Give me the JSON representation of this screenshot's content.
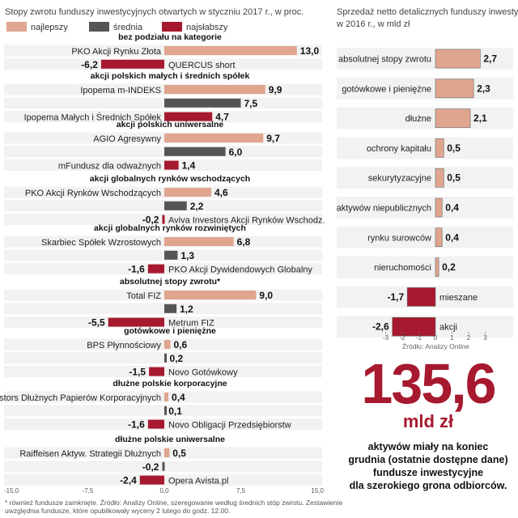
{
  "left_chart": {
    "title": "Stopy zwrotu funduszy inwestycyjnych otwartych w styczniu 2017 r., w proc.",
    "legend": [
      {
        "label": "najlepszy",
        "color": "#e0a58e"
      },
      {
        "label": "średnia",
        "color": "#555555"
      },
      {
        "label": "najsłabszy",
        "color": "#a6192e"
      }
    ],
    "axis_ticks": [
      "-15,0",
      "-7,5",
      "0,0",
      "7,5",
      "15,0"
    ],
    "footnote": "* również fundusze zamknięte. Źródło: Analizy Online, szeregowanie według średnich stóp zwrotu. Zestawienie uwzględnia fundusze, które opublikowały wyceny 2 lutego do godz. 12.00."
  },
  "chart_data": [
    {
      "type": "bar",
      "title": "Stopy zwrotu funduszy inwestycyjnych otwartych w styczniu 2017 r., w proc.",
      "xlim": [
        -15,
        15
      ],
      "groups": [
        {
          "category": "bez podziału na kategorie",
          "bars": [
            {
              "kind": "best",
              "label": "PKO Akcji Rynku Złota",
              "value": 13.0,
              "value_text": "13,0"
            },
            {
              "kind": "worst",
              "label": "QUERCUS short",
              "value": -6.2,
              "value_text": "-6,2"
            }
          ]
        },
        {
          "category": "akcji polskich małych i średnich spółek",
          "bars": [
            {
              "kind": "best",
              "label": "Ipopema m-INDEKS",
              "value": 9.9,
              "value_text": "9,9"
            },
            {
              "kind": "avg",
              "label": "",
              "value": 7.5,
              "value_text": "7,5"
            },
            {
              "kind": "worst",
              "label": "Ipopema Małych i Średnich Spółek",
              "value": 4.7,
              "value_text": "4,7"
            }
          ]
        },
        {
          "category": "akcji polskich uniwersalne",
          "bars": [
            {
              "kind": "best",
              "label": "AGIO Agresywny",
              "value": 9.7,
              "value_text": "9,7"
            },
            {
              "kind": "avg",
              "label": "",
              "value": 6.0,
              "value_text": "6,0"
            },
            {
              "kind": "worst",
              "label": "mFundusz dla odważnych",
              "value": 1.4,
              "value_text": "1,4"
            }
          ]
        },
        {
          "category": "akcji globalnych rynków wschodzących",
          "bars": [
            {
              "kind": "best",
              "label": "PKO Akcji Rynków Wschodzących",
              "value": 4.6,
              "value_text": "4,6"
            },
            {
              "kind": "avg",
              "label": "",
              "value": 2.2,
              "value_text": "2,2"
            },
            {
              "kind": "worst",
              "label": "Aviva Investors Akcji Rynków Wschodz.",
              "value": -0.2,
              "value_text": "-0,2"
            }
          ]
        },
        {
          "category": "akcji globalnych rynków rozwiniętych",
          "bars": [
            {
              "kind": "best",
              "label": "Skarbiec Spółek Wzrostowych",
              "value": 6.8,
              "value_text": "6,8"
            },
            {
              "kind": "avg",
              "label": "",
              "value": 1.3,
              "value_text": "1,3"
            },
            {
              "kind": "worst",
              "label": "PKO Akcji Dywidendowych Globalny",
              "value": -1.6,
              "value_text": "-1,6"
            }
          ]
        },
        {
          "category": "absolutnej stopy zwrotu*",
          "bars": [
            {
              "kind": "best",
              "label": "Total FIZ",
              "value": 9.0,
              "value_text": "9,0"
            },
            {
              "kind": "avg",
              "label": "",
              "value": 1.2,
              "value_text": "1,2"
            },
            {
              "kind": "worst",
              "label": "Metrum FIZ",
              "value": -5.5,
              "value_text": "-5,5"
            }
          ]
        },
        {
          "category": "gotówkowe i pieniężne",
          "bars": [
            {
              "kind": "best",
              "label": "BPS Płynnościowy",
              "value": 0.6,
              "value_text": "0,6"
            },
            {
              "kind": "avg",
              "label": "",
              "value": 0.2,
              "value_text": "0,2"
            },
            {
              "kind": "worst",
              "label": "Novo Gotówkowy",
              "value": -1.5,
              "value_text": "-1,5"
            }
          ]
        },
        {
          "category": "dłużne polskie korporacyjne",
          "bars": [
            {
              "kind": "best",
              "label": "Aviva Investors Dłużnych Papierów Korporacyjnych",
              "value": 0.4,
              "value_text": "0,4"
            },
            {
              "kind": "avg",
              "label": "",
              "value": 0.1,
              "value_text": "0,1"
            },
            {
              "kind": "worst",
              "label": "Novo Obligacji Przedsiębiorstw",
              "value": -1.6,
              "value_text": "-1,6"
            }
          ]
        },
        {
          "category": "dłużne polskie uniwersalne",
          "bars": [
            {
              "kind": "best",
              "label": "Raiffeisen Aktyw. Strategii Dłużnych",
              "value": 0.5,
              "value_text": "0,5"
            },
            {
              "kind": "avg",
              "label": "",
              "value": -0.2,
              "value_text": "-0,2"
            },
            {
              "kind": "worst",
              "label": "Opera Avista.pl",
              "value": -2.4,
              "value_text": "-2,4"
            }
          ]
        }
      ]
    },
    {
      "type": "bar",
      "title": "Sprzedaż netto detalicznych funduszy inwestycyjnych w 2016 r., w mld zł",
      "xlim": [
        -3,
        3
      ],
      "xticks": [
        "-3",
        "-2",
        "-1",
        "0",
        "1",
        "2",
        "3"
      ],
      "source": "Źródło: Analizy Online",
      "categories": [
        "absolutnej stopy zwrotu",
        "gotówkowe i pieniężne",
        "dłużne",
        "ochrony kapitału",
        "sekurytyzacyjne",
        "aktywów niepublicznych",
        "rynku surowców",
        "nieruchomości",
        "mieszane",
        "akcji"
      ],
      "values": [
        2.7,
        2.3,
        2.1,
        0.5,
        0.5,
        0.4,
        0.4,
        0.2,
        -1.7,
        -2.6
      ],
      "value_texts": [
        "2,7",
        "2,3",
        "2,1",
        "0,5",
        "0,5",
        "0,4",
        "0,4",
        "0,2",
        "-1,7",
        "-2,6"
      ]
    }
  ],
  "highlight": {
    "number": "135,6",
    "unit": "mld zł",
    "description": "aktywów miały na koniec\ngrudnia (ostatnie dostępne dane)\nfundusze inwestycyjne\ndla szerokiego grona odbiorców."
  },
  "colors": {
    "best": "#e0a58e",
    "avg": "#555555",
    "worst": "#a6192e",
    "band": "#f2f2f2",
    "accent": "#a6192e"
  }
}
